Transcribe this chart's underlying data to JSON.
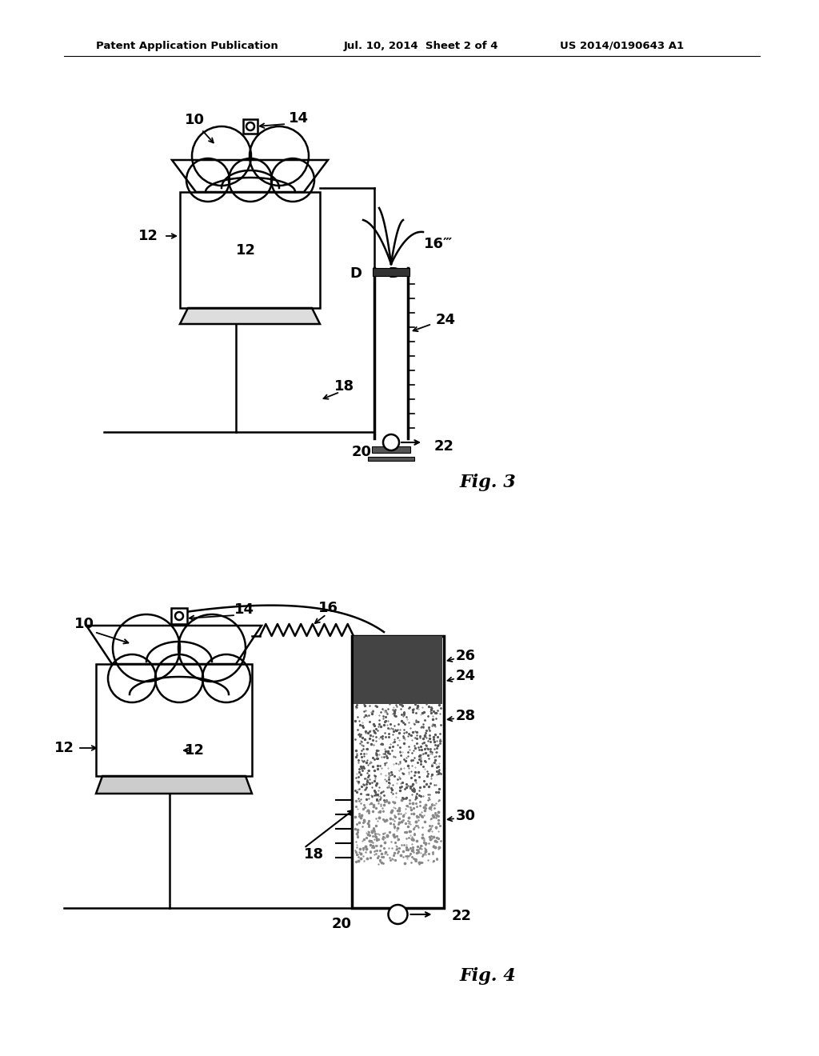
{
  "bg_color": "#ffffff",
  "header_text1": "Patent Application Publication",
  "header_text2": "Jul. 10, 2014  Sheet 2 of 4",
  "header_text3": "US 2014/0190643 A1",
  "fig3_label": "Fig. 3",
  "fig4_label": "Fig. 4",
  "line_color": "#000000",
  "lw": 1.8,
  "tlw": 2.5
}
